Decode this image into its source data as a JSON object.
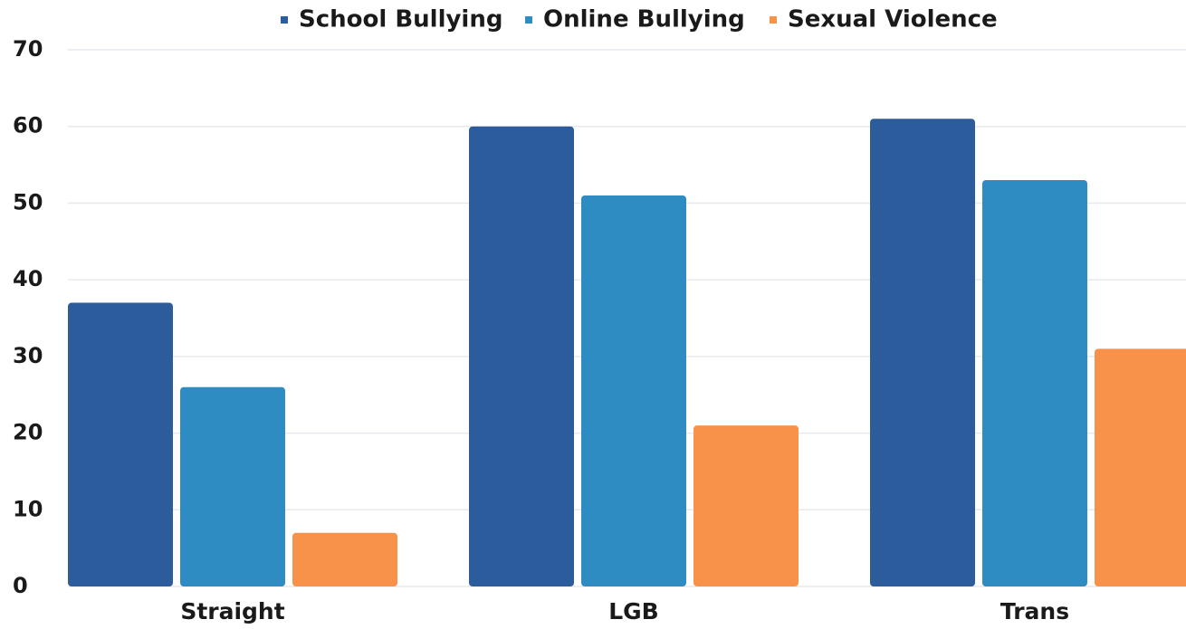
{
  "chart_data": {
    "type": "bar",
    "categories": [
      "Straight",
      "LGB",
      "Trans"
    ],
    "series": [
      {
        "name": "School Bullying",
        "color": "#2c5c9c",
        "values": [
          37,
          60,
          61
        ]
      },
      {
        "name": "Online Bullying",
        "color": "#2f8cc2",
        "values": [
          26,
          51,
          53
        ]
      },
      {
        "name": "Sexual Violence",
        "color": "#f8914a",
        "values": [
          7,
          21,
          31
        ]
      }
    ],
    "ylim": [
      0,
      70
    ],
    "yticks": [
      0,
      10,
      20,
      30,
      40,
      50,
      60,
      70
    ],
    "grid": true,
    "legend": "top"
  }
}
